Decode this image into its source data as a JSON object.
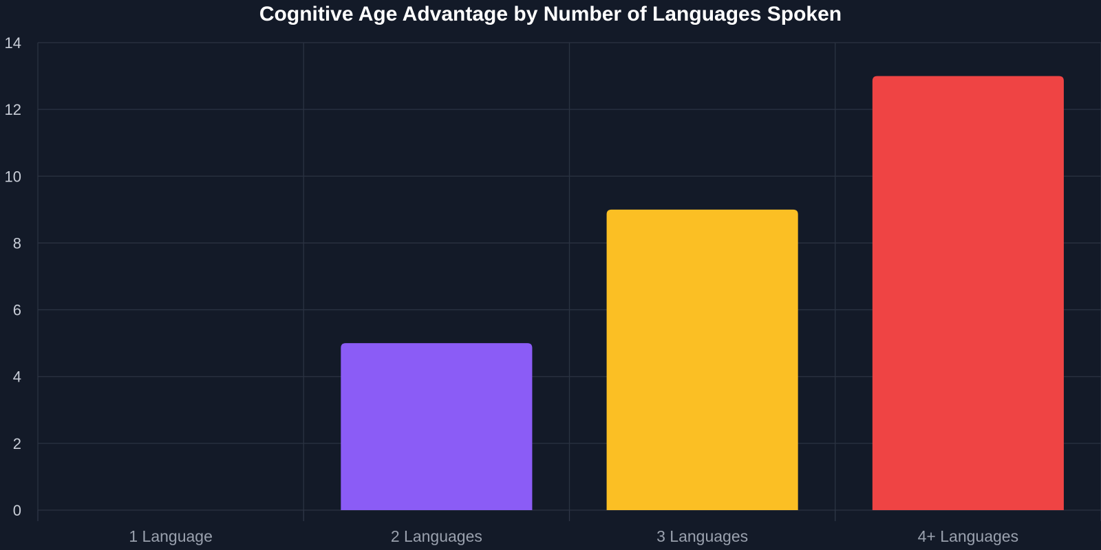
{
  "chart_data": {
    "type": "bar",
    "title": "Cognitive Age Advantage by Number of Languages Spoken",
    "xlabel": "",
    "ylabel": "",
    "categories": [
      "1 Language",
      "2 Languages",
      "3 Languages",
      "4+ Languages"
    ],
    "values": [
      0,
      5,
      9,
      13
    ],
    "colors": [
      "#8b5cf6",
      "#8b5cf6",
      "#fbbf24",
      "#ef4444"
    ],
    "ylim": [
      0,
      14
    ],
    "yticks": [
      0,
      2,
      4,
      6,
      8,
      10,
      12,
      14
    ],
    "grid": true,
    "legend": "none",
    "background": "#131a28",
    "grid_color": "#2b3342",
    "title_color": "#ffffff"
  }
}
